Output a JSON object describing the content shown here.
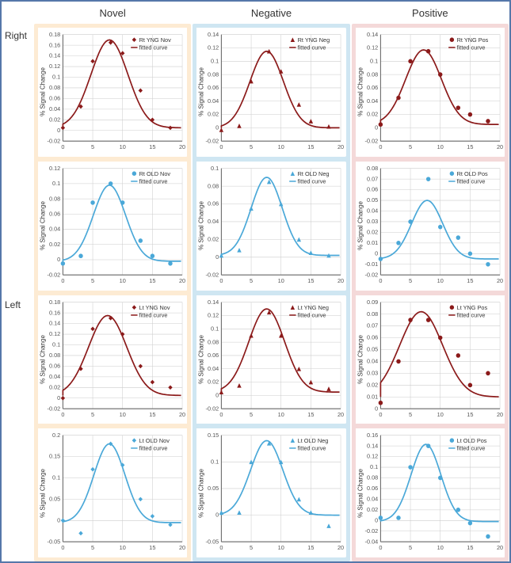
{
  "columns": [
    {
      "title": "Novel",
      "bg": "#fdebd3"
    },
    {
      "title": "Negative",
      "bg": "#cfe6f2"
    },
    {
      "title": "Positive",
      "bg": "#f4d9d9"
    }
  ],
  "rows": [
    "Right",
    "Left"
  ],
  "ylabel": "% Signal Change",
  "xlim": [
    0,
    20
  ],
  "xticks": [
    0,
    5,
    10,
    15,
    20
  ],
  "colors": {
    "yng_line": "#8b1a1a",
    "yng_marker": "#8b1a1a",
    "old_line": "#4aa8d8",
    "old_marker": "#4aa8d8",
    "grid": "#cccccc",
    "axis": "#666666",
    "tick_text": "#555555",
    "bg": "#ffffff"
  },
  "font": {
    "tick": 7,
    "legend": 7,
    "ylabel": 8
  },
  "charts": [
    [
      {
        "legend_point": "Rt YNG Nov",
        "legend_curve": "fitted curve",
        "series": "yng",
        "marker": "diamond",
        "ylim": [
          -0.02,
          0.18
        ],
        "yticks": [
          -0.02,
          0,
          0.02,
          0.04,
          0.06,
          0.08,
          0.1,
          0.12,
          0.14,
          0.16,
          0.18
        ],
        "points": [
          [
            0,
            0.005
          ],
          [
            3,
            0.045
          ],
          [
            5,
            0.13
          ],
          [
            8,
            0.165
          ],
          [
            10,
            0.145
          ],
          [
            13,
            0.075
          ],
          [
            15,
            0.02
          ],
          [
            18,
            0.005
          ]
        ],
        "curve": {
          "amp": 0.165,
          "mu": 7.8,
          "sigma": 3.1,
          "base": 0.005
        }
      },
      {
        "legend_point": "Rt YNG Neg",
        "legend_curve": "fitted curve",
        "series": "yng",
        "marker": "triangle",
        "ylim": [
          -0.02,
          0.14
        ],
        "yticks": [
          -0.02,
          0,
          0.02,
          0.04,
          0.06,
          0.08,
          0.1,
          0.12,
          0.14
        ],
        "points": [
          [
            0,
            -0.003
          ],
          [
            3,
            0.003
          ],
          [
            5,
            0.07
          ],
          [
            8,
            0.115
          ],
          [
            10,
            0.085
          ],
          [
            13,
            0.035
          ],
          [
            15,
            0.01
          ],
          [
            18,
            0.002
          ]
        ],
        "curve": {
          "amp": 0.115,
          "mu": 7.6,
          "sigma": 2.8,
          "base": 0.0
        }
      },
      {
        "legend_point": "Rt YNG Pos",
        "legend_curve": "fitted curve",
        "series": "yng",
        "marker": "circle",
        "ylim": [
          -0.02,
          0.14
        ],
        "yticks": [
          -0.02,
          0,
          0.02,
          0.04,
          0.06,
          0.08,
          0.1,
          0.12,
          0.14
        ],
        "points": [
          [
            0,
            0.005
          ],
          [
            3,
            0.045
          ],
          [
            5,
            0.1
          ],
          [
            8,
            0.115
          ],
          [
            10,
            0.08
          ],
          [
            13,
            0.03
          ],
          [
            15,
            0.02
          ],
          [
            18,
            0.01
          ]
        ],
        "curve": {
          "amp": 0.112,
          "mu": 7.2,
          "sigma": 3.0,
          "base": 0.005
        }
      }
    ],
    [
      {
        "legend_point": "Rt OLD Nov",
        "legend_curve": "fitted curve",
        "series": "old",
        "marker": "circle",
        "ylim": [
          -0.02,
          0.12
        ],
        "yticks": [
          -0.02,
          0,
          0.02,
          0.04,
          0.06,
          0.08,
          0.1,
          0.12
        ],
        "points": [
          [
            0,
            -0.005
          ],
          [
            3,
            0.005
          ],
          [
            5,
            0.075
          ],
          [
            8,
            0.1
          ],
          [
            10,
            0.075
          ],
          [
            13,
            0.025
          ],
          [
            15,
            0.005
          ],
          [
            18,
            -0.005
          ]
        ],
        "curve": {
          "amp": 0.1,
          "mu": 7.8,
          "sigma": 2.7,
          "base": -0.002
        }
      },
      {
        "legend_point": "Rt OLD Neg",
        "legend_curve": "fitted curve",
        "series": "old",
        "marker": "triangle",
        "ylim": [
          -0.02,
          0.1
        ],
        "yticks": [
          -0.02,
          0,
          0.02,
          0.04,
          0.06,
          0.08,
          0.1
        ],
        "points": [
          [
            0,
            0.002
          ],
          [
            3,
            0.008
          ],
          [
            5,
            0.055
          ],
          [
            8,
            0.085
          ],
          [
            10,
            0.06
          ],
          [
            13,
            0.02
          ],
          [
            15,
            0.005
          ],
          [
            18,
            0.002
          ]
        ],
        "curve": {
          "amp": 0.088,
          "mu": 7.6,
          "sigma": 2.6,
          "base": 0.002
        }
      },
      {
        "legend_point": "Rt OLD Pos",
        "legend_curve": "fitted curve",
        "series": "old",
        "marker": "circle",
        "ylim": [
          -0.02,
          0.08
        ],
        "yticks": [
          -0.02,
          -0.01,
          0,
          0.01,
          0.02,
          0.03,
          0.04,
          0.05,
          0.06,
          0.07,
          0.08
        ],
        "points": [
          [
            0,
            -0.005
          ],
          [
            3,
            0.01
          ],
          [
            5,
            0.03
          ],
          [
            8,
            0.07
          ],
          [
            10,
            0.025
          ],
          [
            13,
            0.015
          ],
          [
            15,
            0.0
          ],
          [
            18,
            -0.01
          ]
        ],
        "curve": {
          "amp": 0.055,
          "mu": 7.8,
          "sigma": 2.6,
          "base": -0.005
        }
      }
    ],
    [
      {
        "legend_point": "Lt YNG Nov",
        "legend_curve": "fitted curve",
        "series": "yng",
        "marker": "diamond",
        "ylim": [
          -0.02,
          0.18
        ],
        "yticks": [
          -0.02,
          0,
          0.02,
          0.04,
          0.06,
          0.08,
          0.1,
          0.12,
          0.14,
          0.16,
          0.18
        ],
        "points": [
          [
            0,
            0.0
          ],
          [
            3,
            0.055
          ],
          [
            5,
            0.13
          ],
          [
            8,
            0.15
          ],
          [
            10,
            0.12
          ],
          [
            13,
            0.06
          ],
          [
            15,
            0.03
          ],
          [
            18,
            0.02
          ]
        ],
        "curve": {
          "amp": 0.15,
          "mu": 7.5,
          "sigma": 3.2,
          "base": 0.005
        }
      },
      {
        "legend_point": "Lt YNG Neg",
        "legend_curve": "fitted curve",
        "series": "yng",
        "marker": "triangle",
        "ylim": [
          -0.02,
          0.14
        ],
        "yticks": [
          -0.02,
          0,
          0.02,
          0.04,
          0.06,
          0.08,
          0.1,
          0.12,
          0.14
        ],
        "points": [
          [
            0,
            0.005
          ],
          [
            3,
            0.015
          ],
          [
            5,
            0.09
          ],
          [
            8,
            0.125
          ],
          [
            10,
            0.09
          ],
          [
            13,
            0.04
          ],
          [
            15,
            0.02
          ],
          [
            18,
            0.01
          ]
        ],
        "curve": {
          "amp": 0.125,
          "mu": 7.6,
          "sigma": 3.0,
          "base": 0.005
        }
      },
      {
        "legend_point": "Lt YNG Pos",
        "legend_curve": "fitted curve",
        "series": "yng",
        "marker": "circle",
        "ylim": [
          0,
          0.09
        ],
        "yticks": [
          0,
          0.01,
          0.02,
          0.03,
          0.04,
          0.05,
          0.06,
          0.07,
          0.08,
          0.09
        ],
        "points": [
          [
            0,
            0.005
          ],
          [
            3,
            0.04
          ],
          [
            5,
            0.075
          ],
          [
            8,
            0.075
          ],
          [
            10,
            0.06
          ],
          [
            13,
            0.045
          ],
          [
            15,
            0.02
          ],
          [
            18,
            0.03
          ]
        ],
        "curve": {
          "amp": 0.072,
          "mu": 6.8,
          "sigma": 3.6,
          "base": 0.01
        }
      }
    ],
    [
      {
        "legend_point": "Lt OLD Nov",
        "legend_curve": "fitted curve",
        "series": "old",
        "marker": "diamond",
        "ylim": [
          -0.05,
          0.2
        ],
        "yticks": [
          -0.05,
          0,
          0.05,
          0.1,
          0.15,
          0.2
        ],
        "points": [
          [
            0,
            0.0
          ],
          [
            3,
            -0.03
          ],
          [
            5,
            0.12
          ],
          [
            8,
            0.18
          ],
          [
            10,
            0.13
          ],
          [
            13,
            0.05
          ],
          [
            15,
            0.01
          ],
          [
            18,
            -0.01
          ]
        ],
        "curve": {
          "amp": 0.185,
          "mu": 7.8,
          "sigma": 2.6,
          "base": -0.005
        }
      },
      {
        "legend_point": "Lt OLD Neg",
        "legend_curve": "fitted curve",
        "series": "old",
        "marker": "triangle",
        "ylim": [
          -0.05,
          0.15
        ],
        "yticks": [
          -0.05,
          0,
          0.05,
          0.1,
          0.15
        ],
        "points": [
          [
            0,
            0.005
          ],
          [
            3,
            0.005
          ],
          [
            5,
            0.1
          ],
          [
            8,
            0.135
          ],
          [
            10,
            0.1
          ],
          [
            13,
            0.03
          ],
          [
            15,
            0.005
          ],
          [
            18,
            -0.02
          ]
        ],
        "curve": {
          "amp": 0.14,
          "mu": 7.6,
          "sigma": 2.7,
          "base": 0.0
        }
      },
      {
        "legend_point": "Lt OLD Pos",
        "legend_curve": "fitted curve",
        "series": "old",
        "marker": "circle",
        "ylim": [
          -0.04,
          0.16
        ],
        "yticks": [
          -0.04,
          -0.02,
          0,
          0.02,
          0.04,
          0.06,
          0.08,
          0.1,
          0.12,
          0.14,
          0.16
        ],
        "points": [
          [
            0,
            0.005
          ],
          [
            3,
            0.005
          ],
          [
            5,
            0.1
          ],
          [
            8,
            0.14
          ],
          [
            10,
            0.08
          ],
          [
            13,
            0.02
          ],
          [
            15,
            -0.005
          ],
          [
            18,
            -0.03
          ]
        ],
        "curve": {
          "amp": 0.145,
          "mu": 7.6,
          "sigma": 2.5,
          "base": -0.002
        }
      }
    ]
  ]
}
